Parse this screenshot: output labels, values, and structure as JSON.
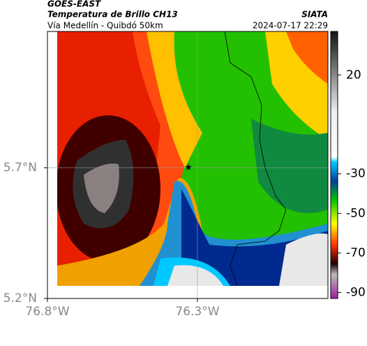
{
  "header": {
    "title": "GOES-EAST",
    "subtitle": "Temperatura de Brillo CH13",
    "route": "Vía Medellín - Quibdó 50km",
    "source": "SIATA",
    "datetime": "2024-07-17 22:29"
  },
  "map": {
    "xlim": [
      -76.8,
      -75.865
    ],
    "ylim": [
      5.2,
      6.221
    ],
    "xticks": [
      {
        "value": -76.8,
        "label": "76.8°W"
      },
      {
        "value": -76.3,
        "label": "76.3°W"
      }
    ],
    "yticks": [
      {
        "value": 5.2,
        "label": "5.2°N"
      },
      {
        "value": 5.7,
        "label": "5.7°N"
      }
    ],
    "marker": {
      "lon": -76.33,
      "lat": 5.7
    },
    "grid": true
  },
  "colorbar": {
    "clim": [
      -93,
      42
    ],
    "ticks": [
      20,
      -30,
      -50,
      -70,
      -90
    ]
  }
}
